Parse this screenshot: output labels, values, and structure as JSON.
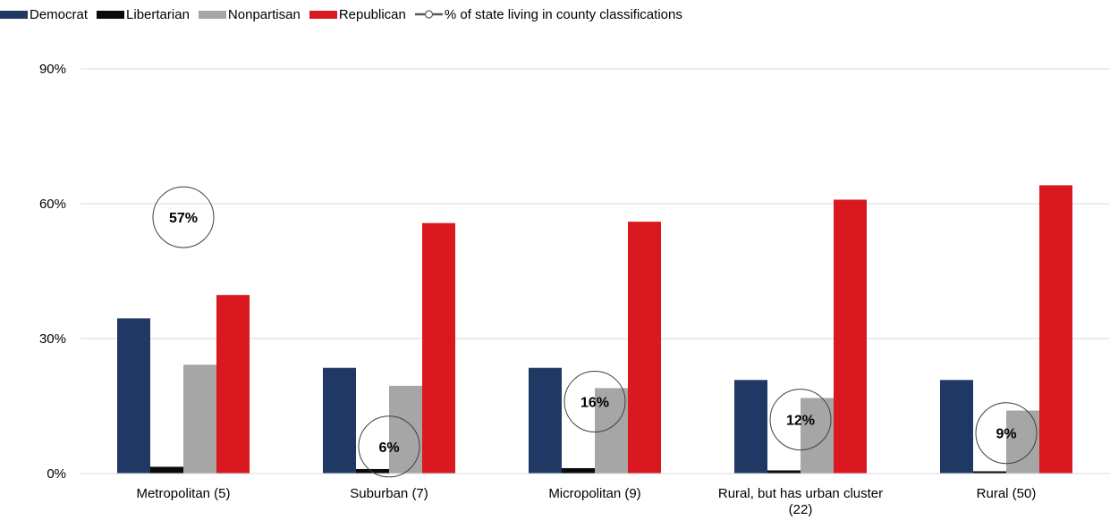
{
  "chart_data": {
    "type": "bar",
    "categories": [
      [
        "Metropolitan (5)"
      ],
      [
        "Suburban (7)"
      ],
      [
        "Micropolitan (9)"
      ],
      [
        "Rural, but has urban cluster",
        "(22)"
      ],
      [
        "Rural (50)"
      ]
    ],
    "series": [
      {
        "name": "Democrat",
        "color": "#1f3864",
        "values": [
          34.5,
          23.5,
          23.5,
          20.8,
          20.8
        ]
      },
      {
        "name": "Libertarian",
        "color": "#0a0a0a",
        "values": [
          1.5,
          1.0,
          1.2,
          0.7,
          0.5
        ]
      },
      {
        "name": "Nonpartisan",
        "color": "#a6a6a6",
        "values": [
          24.2,
          19.5,
          19.0,
          16.8,
          14.0
        ]
      },
      {
        "name": "Republican",
        "color": "#d9181f",
        "values": [
          39.7,
          55.7,
          56.0,
          60.9,
          64.1
        ]
      }
    ],
    "line_series": {
      "name": "% of state living in county classifications",
      "values": [
        57,
        6,
        16,
        12,
        9
      ],
      "labels": [
        "57%",
        "6%",
        "16%",
        "12%",
        "9%"
      ]
    },
    "ylim": [
      0,
      90
    ],
    "yticks": [
      0,
      30,
      60,
      90
    ],
    "ytick_labels": [
      "0%",
      "30%",
      "60%",
      "90%"
    ],
    "grid": true,
    "legend_position": "top-left"
  }
}
